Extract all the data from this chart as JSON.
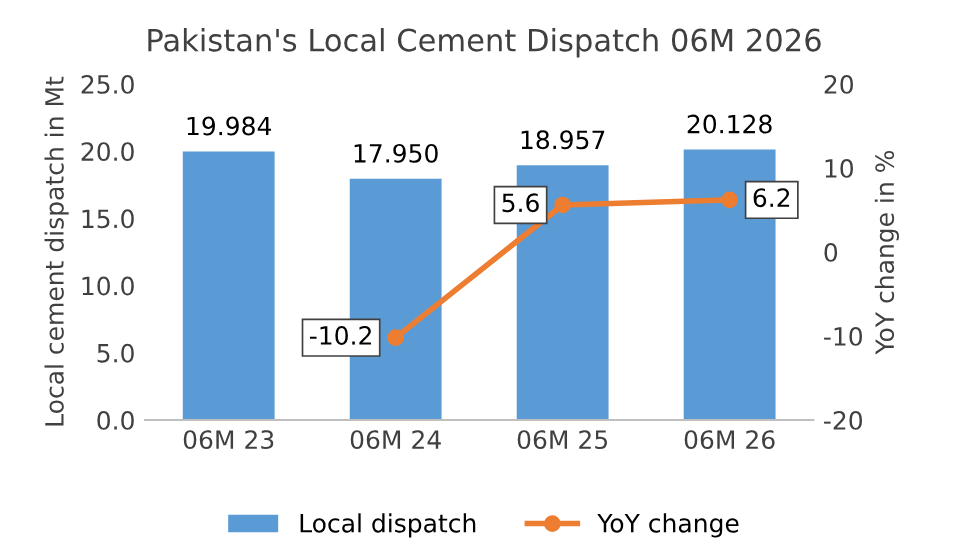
{
  "chart_data": {
    "type": "bar",
    "title": "Pakistan's Local Cement Dispatch 06M 2026",
    "ylabel": "Local cement dispatch in Mt",
    "y2label": "YoY change in %",
    "categories": [
      "06M 23",
      "06M 24",
      "06M 25",
      "06M 26"
    ],
    "series": [
      {
        "name": "Local dispatch",
        "color": "#5b9bd5",
        "values": [
          19.984,
          17.95,
          18.957,
          20.128
        ],
        "value_labels": [
          "19.984",
          "17.950",
          "18.957",
          "20.128"
        ]
      },
      {
        "name": "YoY change",
        "type": "line",
        "axis": "y2",
        "color": "#ed7d31",
        "marker": "circle",
        "values": [
          null,
          -10.2,
          5.6,
          6.2
        ],
        "value_labels": [
          null,
          "-10.2",
          "5.6",
          "6.2"
        ]
      }
    ],
    "ylim": [
      0,
      25
    ],
    "yticks": [
      {
        "value": 0,
        "label": "0.0"
      },
      {
        "value": 5,
        "label": "5.0"
      },
      {
        "value": 10,
        "label": "10.0"
      },
      {
        "value": 15,
        "label": "15.0"
      },
      {
        "value": 20,
        "label": "20.0"
      },
      {
        "value": 25,
        "label": "25.0"
      }
    ],
    "y2lim": [
      -20,
      20
    ],
    "y2ticks": [
      -20,
      -10,
      0,
      10,
      20
    ],
    "legend": "bottom",
    "grid": false
  }
}
